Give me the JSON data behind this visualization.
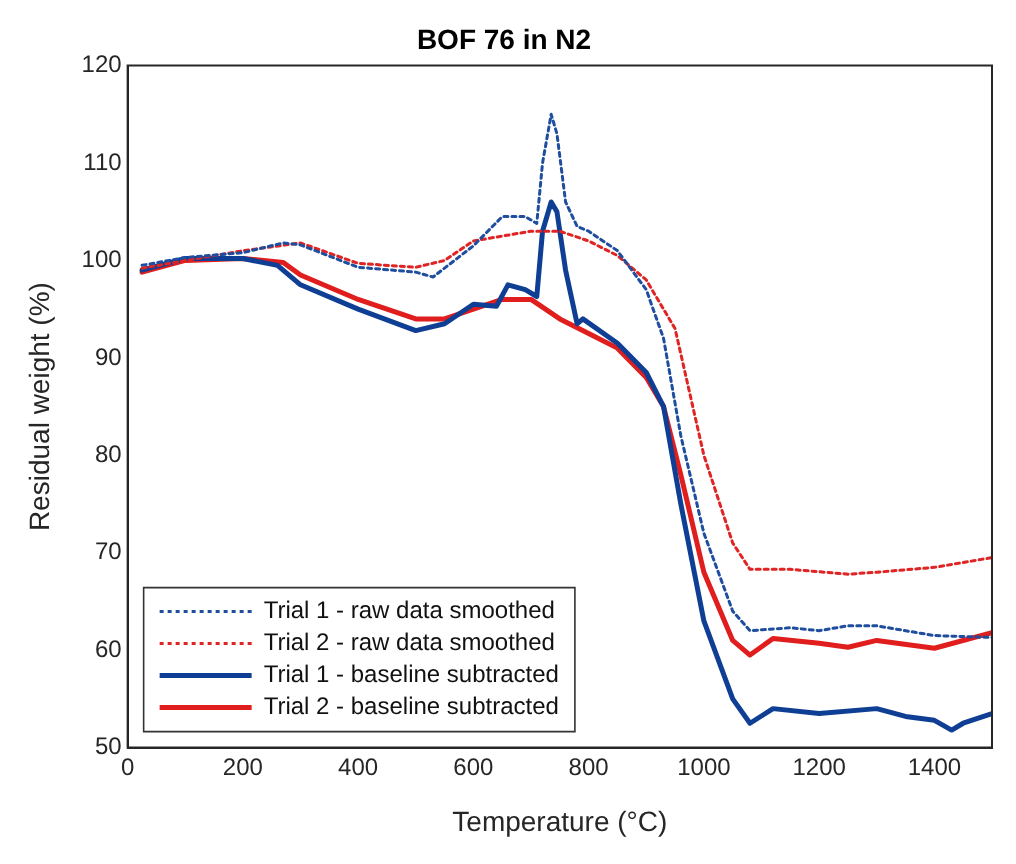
{
  "chart_data": {
    "type": "line",
    "title": "BOF 76 in N2",
    "xlabel": "Temperature (°C)",
    "ylabel": "Residual weight (%)",
    "xlim": [
      0,
      1500
    ],
    "xticks": [
      0,
      200,
      400,
      600,
      800,
      1000,
      1200,
      1400
    ],
    "ylim": [
      50,
      120
    ],
    "yticks": [
      50,
      60,
      70,
      80,
      90,
      100,
      110,
      120
    ],
    "legend": "bottom left",
    "grid": false,
    "series": [
      {
        "name": "Trial 1 - raw data smoothed",
        "color": "#1f4e9e",
        "line_style": "dotted",
        "x": [
          25,
          100,
          200,
          270,
          300,
          400,
          500,
          530,
          600,
          650,
          690,
          710,
          720,
          735,
          745,
          760,
          780,
          800,
          850,
          900,
          930,
          960,
          1000,
          1050,
          1080,
          1150,
          1200,
          1250,
          1300,
          1400,
          1500
        ],
        "values": [
          99.5,
          100.3,
          100.8,
          101.8,
          101.6,
          99.3,
          98.8,
          98.3,
          101.5,
          104.5,
          104.5,
          103.8,
          110,
          115,
          113,
          106,
          103.5,
          103,
          101,
          97,
          92,
          82,
          72,
          64,
          62,
          62.3,
          62,
          62.5,
          62.5,
          61.5,
          61.3
        ]
      },
      {
        "name": "Trial 2 - raw data smoothed",
        "color": "#e02424",
        "line_style": "dotted",
        "x": [
          25,
          100,
          200,
          300,
          400,
          500,
          550,
          600,
          700,
          750,
          800,
          850,
          900,
          950,
          1000,
          1050,
          1080,
          1150,
          1250,
          1300,
          1400,
          1500
        ],
        "values": [
          99.2,
          100,
          101,
          101.8,
          99.7,
          99.3,
          100,
          102,
          103,
          103,
          102,
          100.5,
          98,
          93,
          80,
          71,
          68.3,
          68.3,
          67.8,
          68,
          68.5,
          69.5
        ]
      },
      {
        "name": "Trial 1 - baseline subtracted",
        "color": "#0f3f94",
        "line_style": "solid",
        "x": [
          25,
          100,
          200,
          260,
          300,
          400,
          500,
          550,
          600,
          640,
          660,
          690,
          710,
          720,
          735,
          745,
          760,
          780,
          790,
          850,
          900,
          930,
          960,
          1000,
          1050,
          1080,
          1120,
          1200,
          1300,
          1350,
          1400,
          1430,
          1450,
          1500
        ],
        "values": [
          99,
          100.2,
          100.2,
          99.5,
          97.5,
          95,
          92.8,
          93.5,
          95.5,
          95.3,
          97.5,
          97,
          96.3,
          103,
          106,
          105,
          99,
          93.5,
          94,
          91.5,
          88.5,
          85,
          75,
          63,
          55,
          52.5,
          54,
          53.5,
          54,
          53.2,
          52.8,
          51.8,
          52.5,
          53.5
        ]
      },
      {
        "name": "Trial 2 - baseline subtracted",
        "color": "#e01e1e",
        "line_style": "solid",
        "x": [
          25,
          100,
          200,
          270,
          300,
          400,
          500,
          550,
          600,
          650,
          700,
          750,
          800,
          850,
          900,
          930,
          960,
          1000,
          1050,
          1080,
          1120,
          1200,
          1250,
          1300,
          1400,
          1500
        ],
        "values": [
          98.8,
          100,
          100.2,
          99.8,
          98.5,
          96,
          94,
          94,
          95,
          96,
          96,
          94,
          92.5,
          91,
          88,
          85,
          78,
          68,
          61,
          59.5,
          61.2,
          60.7,
          60.3,
          61,
          60.2,
          61.8
        ]
      }
    ]
  }
}
